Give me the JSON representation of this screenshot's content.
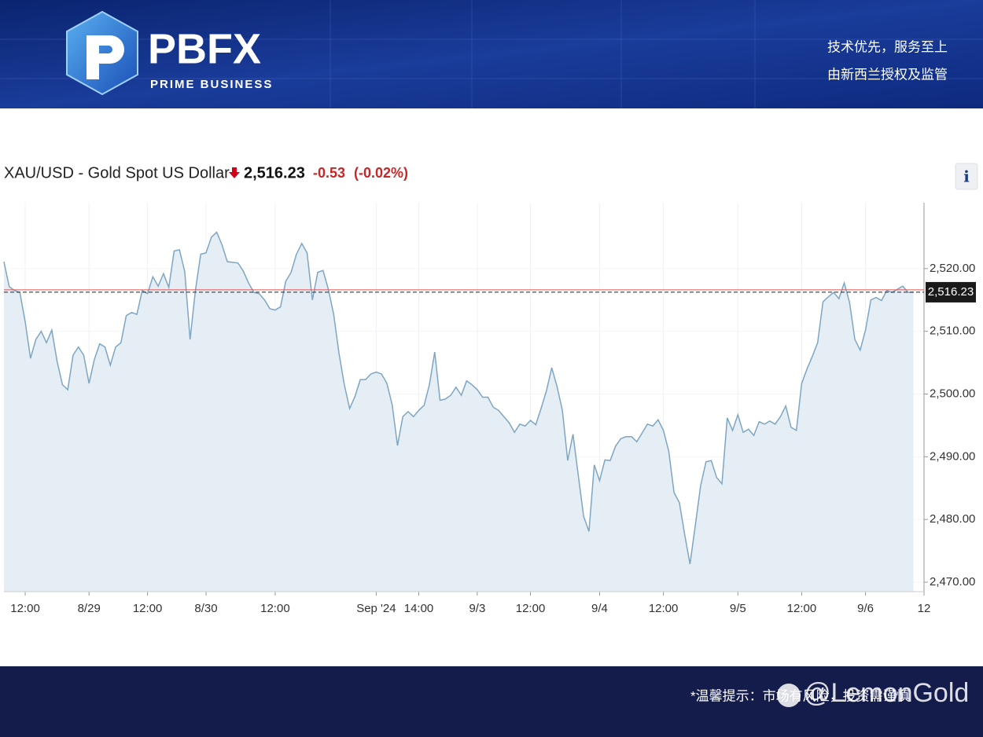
{
  "header": {
    "brand": "PBFX",
    "brand_sub": "PRIME BUSINESS",
    "slogan_1": "技术优先，服务至上",
    "slogan_2": "由新西兰授权及监管"
  },
  "quote": {
    "symbol": "XAU/USD - Gold Spot US Dollar",
    "price": "2,516.23",
    "change": "-0.53",
    "change_pct": "(-0.02%)",
    "info": "i"
  },
  "footer": {
    "notice": "*温馨提示：市场有风险，投资需谨慎",
    "watermark": "@LemonGold"
  },
  "chart_data": {
    "type": "area",
    "categories": [
      null,
      null,
      null,
      null,
      "12:00",
      null,
      null,
      null,
      null,
      null,
      null,
      null,
      null,
      null,
      null,
      null,
      "8/29",
      null,
      null,
      null,
      null,
      null,
      null,
      null,
      null,
      null,
      null,
      "12:00",
      null,
      null,
      null,
      null,
      null,
      null,
      null,
      null,
      null,
      null,
      "8/30",
      null,
      null,
      null,
      null,
      null,
      null,
      null,
      null,
      null,
      null,
      null,
      null,
      "12:00",
      null,
      null,
      null,
      null,
      null,
      null,
      null,
      null,
      null,
      null,
      null,
      null,
      null,
      null,
      null,
      null,
      null,
      null,
      "Sep '24",
      null,
      null,
      null,
      null,
      null,
      null,
      null,
      "14:00",
      null,
      null,
      null,
      null,
      null,
      null,
      null,
      null,
      null,
      null,
      "9/3",
      null,
      null,
      null,
      null,
      null,
      null,
      null,
      null,
      null,
      "12:00",
      null,
      null,
      null,
      null,
      null,
      null,
      null,
      null,
      null,
      null,
      null,
      null,
      "9/4",
      null,
      null,
      null,
      null,
      null,
      null,
      null,
      null,
      null,
      null,
      null,
      "12:00",
      null,
      null,
      null,
      null,
      null,
      null,
      null,
      null,
      null,
      null,
      null,
      null,
      null,
      "9/5",
      null,
      null,
      null,
      null,
      null,
      null,
      null,
      null,
      null,
      null,
      null,
      "12:00",
      null,
      null,
      null,
      null,
      null,
      null,
      null,
      null,
      null,
      null,
      null,
      "9/6",
      null,
      null,
      null,
      null,
      null,
      null,
      null,
      null,
      null,
      null,
      "12"
    ],
    "values": [
      2521.1,
      2517.1,
      2516.5,
      2516.2,
      2511.5,
      2505.7,
      2508.7,
      2510.0,
      2508.2,
      2510.2,
      2505.2,
      2501.5,
      2500.7,
      2506.2,
      2507.5,
      2506.2,
      2501.7,
      2505.5,
      2508.0,
      2507.5,
      2504.6,
      2507.5,
      2508.2,
      2512.5,
      2513.0,
      2512.7,
      2516.5,
      2516.0,
      2518.7,
      2517.2,
      2519.2,
      2517.0,
      2522.8,
      2523.0,
      2519.5,
      2508.7,
      2516.5,
      2522.3,
      2522.5,
      2525.0,
      2525.8,
      2523.8,
      2521.1,
      2521.0,
      2520.9,
      2519.6,
      2517.7,
      2516.2,
      2516.0,
      2515.0,
      2513.6,
      2513.4,
      2513.9,
      2518.0,
      2519.4,
      2522.3,
      2524.0,
      2522.5,
      2515.0,
      2519.4,
      2519.7,
      2516.7,
      2512.7,
      2506.5,
      2501.5,
      2497.7,
      2499.6,
      2502.3,
      2502.3,
      2503.2,
      2503.5,
      2503.2,
      2501.7,
      2498.3,
      2491.8,
      2496.4,
      2497.2,
      2496.4,
      2497.4,
      2498.2,
      2501.5,
      2506.7,
      2499.0,
      2499.2,
      2499.8,
      2501.1,
      2499.8,
      2502.1,
      2501.5,
      2500.7,
      2499.5,
      2499.5,
      2497.9,
      2497.4,
      2496.4,
      2495.4,
      2493.9,
      2495.2,
      2494.9,
      2495.8,
      2495.1,
      2497.7,
      2500.5,
      2504.2,
      2501.2,
      2497.4,
      2489.4,
      2493.6,
      2487.0,
      2480.5,
      2478.1,
      2488.7,
      2486.2,
      2489.5,
      2489.4,
      2491.7,
      2492.9,
      2493.2,
      2493.2,
      2492.4,
      2493.8,
      2495.2,
      2494.9,
      2495.9,
      2494.2,
      2490.9,
      2484.3,
      2482.7,
      2477.6,
      2472.9,
      2479.1,
      2485.4,
      2489.2,
      2489.4,
      2486.7,
      2485.7,
      2496.2,
      2494.2,
      2496.7,
      2493.9,
      2494.4,
      2493.4,
      2495.6,
      2495.2,
      2495.7,
      2495.2,
      2496.4,
      2498.1,
      2494.7,
      2494.2,
      2501.7,
      2504.0,
      2506.0,
      2508.2,
      2514.7,
      2515.5,
      2516.2,
      2515.2,
      2517.7,
      2514.6,
      2508.7,
      2507.0,
      2510.2,
      2515.0,
      2515.4,
      2514.9,
      2516.5,
      2516.2,
      2516.7,
      2517.2,
      2516.2,
      2516.23,
      null,
      null
    ],
    "color": "#7ea6c2",
    "fill_color": "#e5edf5",
    "ylim": [
      2468.5,
      2530.5
    ],
    "yticks": [
      {
        "value": 2470,
        "label": "2,470.00"
      },
      {
        "value": 2480,
        "label": "2,480.00"
      },
      {
        "value": 2490,
        "label": "2,490.00"
      },
      {
        "value": 2500,
        "label": "2,500.00"
      },
      {
        "value": 2510,
        "label": "2,510.00"
      },
      {
        "value": 2520,
        "label": "2,520.00"
      }
    ],
    "last_value": {
      "value": 2516.23,
      "label": "2,516.23"
    },
    "last_line_color": "#d9534f",
    "grid": true
  }
}
